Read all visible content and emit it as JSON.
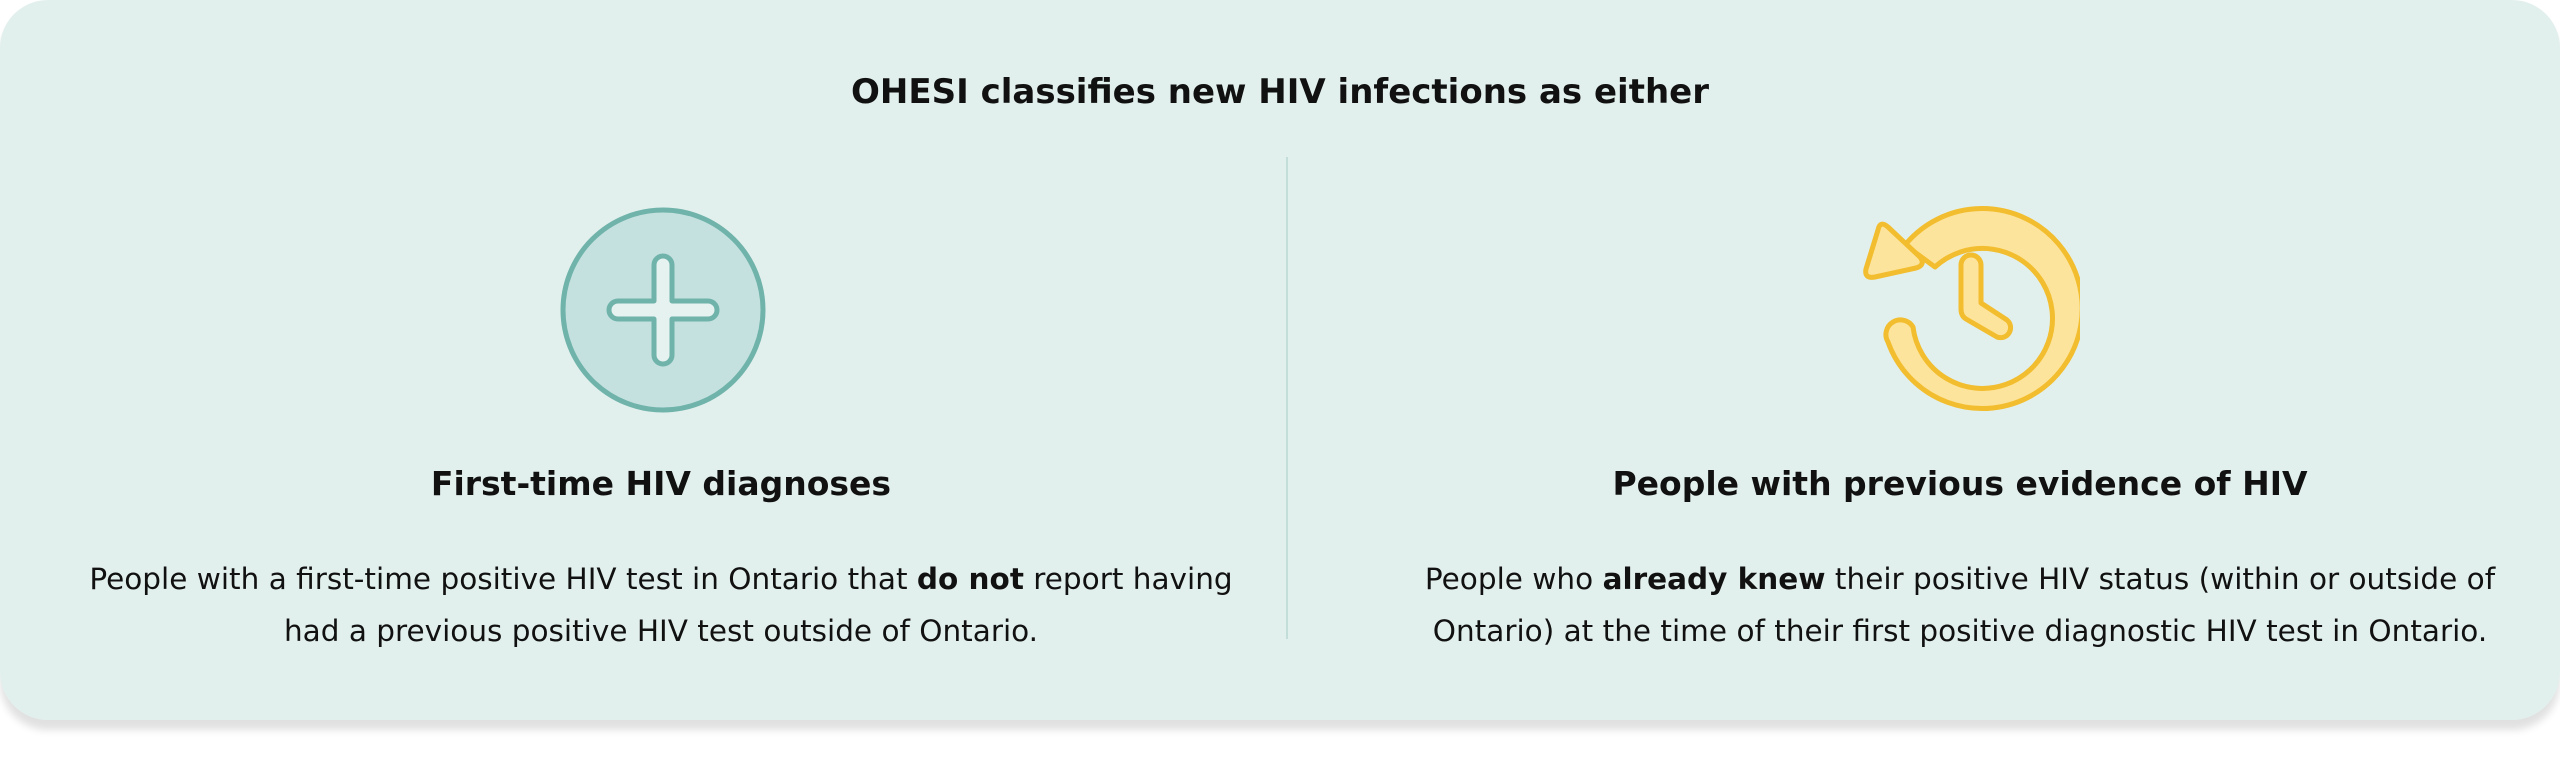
{
  "title": "OHESI classifies new HIV infections as either",
  "columns": [
    {
      "heading": "First-time HIV diagnoses",
      "body": [
        "People with a first-time positive HIV test in Ontario that ",
        "do not",
        " report having had a previous positive HIV test outside of Ontario."
      ]
    },
    {
      "heading": "People with previous evidence of HIV",
      "body": [
        "People who ",
        "already knew",
        " their positive HIV status (within or outside of Ontario) at the time of their first positive diagnostic HIV test in Ontario."
      ]
    }
  ]
}
